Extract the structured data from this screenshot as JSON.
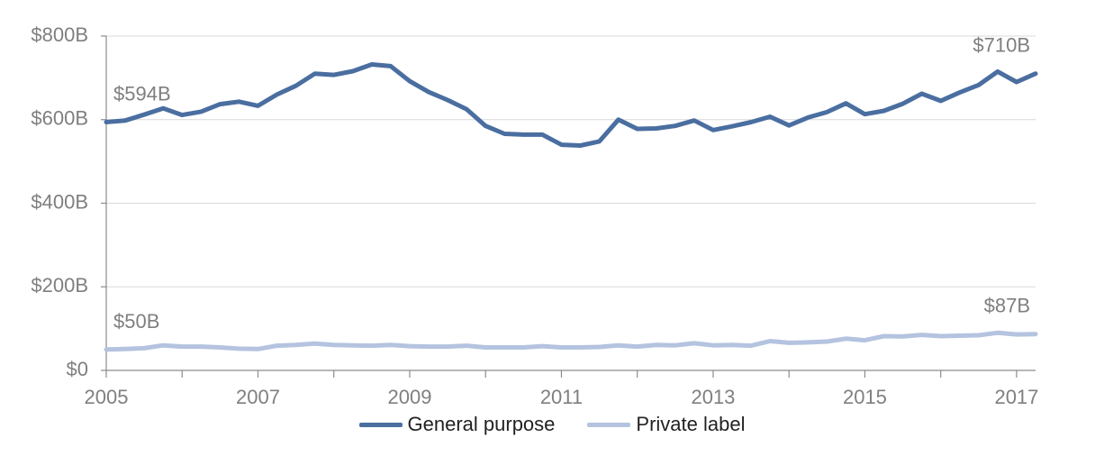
{
  "chart_data": {
    "type": "line",
    "title": "",
    "xlabel": "",
    "ylabel": "",
    "xlim": [
      2005,
      2017.25
    ],
    "ylim": [
      0,
      800
    ],
    "grid": true,
    "legend_position": "bottom",
    "x_ticks": [
      2005,
      2007,
      2009,
      2011,
      2013,
      2015,
      2017
    ],
    "y_ticks": [
      {
        "value": 0,
        "label": "$0"
      },
      {
        "value": 200,
        "label": "$200B"
      },
      {
        "value": 400,
        "label": "$400B"
      },
      {
        "value": 600,
        "label": "$600B"
      },
      {
        "value": 800,
        "label": "$800B"
      }
    ],
    "x": [
      2005,
      2005.25,
      2005.5,
      2005.75,
      2006,
      2006.25,
      2006.5,
      2006.75,
      2007,
      2007.25,
      2007.5,
      2007.75,
      2008,
      2008.25,
      2008.5,
      2008.75,
      2009,
      2009.25,
      2009.5,
      2009.75,
      2010,
      2010.25,
      2010.5,
      2010.75,
      2011,
      2011.25,
      2011.5,
      2011.75,
      2012,
      2012.25,
      2012.5,
      2012.75,
      2013,
      2013.25,
      2013.5,
      2013.75,
      2014,
      2014.25,
      2014.5,
      2014.75,
      2015,
      2015.25,
      2015.5,
      2015.75,
      2016,
      2016.25,
      2016.5,
      2016.75,
      2017,
      2017.25
    ],
    "series": [
      {
        "name": "General purpose",
        "color": "#4a6ea0",
        "values": [
          594,
          598,
          612,
          627,
          611,
          619,
          637,
          643,
          633,
          660,
          681,
          710,
          707,
          716,
          732,
          728,
          692,
          666,
          647,
          625,
          585,
          566,
          564,
          564,
          540,
          538,
          548,
          600,
          578,
          579,
          585,
          598,
          575,
          584,
          594,
          607,
          586,
          605,
          618,
          639,
          613,
          621,
          638,
          662,
          645,
          665,
          683,
          715,
          690,
          710
        ]
      },
      {
        "name": "Private label",
        "color": "#b4c3df",
        "values": [
          50,
          51,
          53,
          60,
          57,
          57,
          55,
          52,
          51,
          59,
          61,
          64,
          61,
          60,
          59,
          61,
          58,
          57,
          57,
          59,
          55,
          55,
          55,
          58,
          55,
          55,
          56,
          60,
          57,
          61,
          60,
          65,
          60,
          61,
          59,
          70,
          66,
          67,
          69,
          76,
          72,
          82,
          81,
          85,
          82,
          83,
          84,
          90,
          86,
          87
        ]
      }
    ],
    "annotations": [
      {
        "label": "$594B",
        "x": 2005,
        "y": 594
      },
      {
        "label": "$50B",
        "x": 2005,
        "y": 50
      },
      {
        "label": "$710B",
        "x": 2017.25,
        "y": 710
      },
      {
        "label": "$87B",
        "x": 2017.25,
        "y": 87
      }
    ]
  }
}
